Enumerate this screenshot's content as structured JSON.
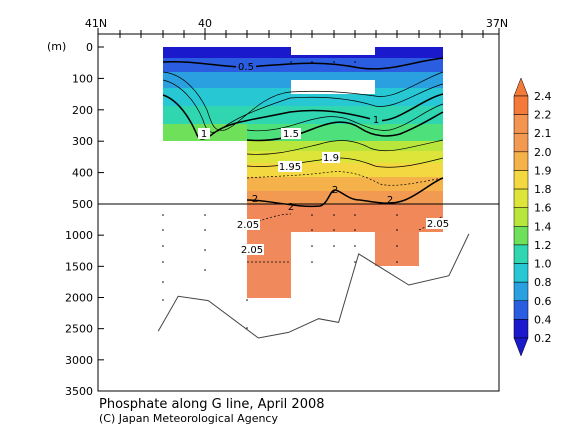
{
  "chart_data": {
    "type": "heatmap",
    "variable": "Phosphate",
    "caption": "Phosphate along G line, April 2008",
    "credit": "(C) Japan Meteorological Agency",
    "y_unit_label": "(m)",
    "x_ticks": [
      "41N",
      "40",
      "37N"
    ],
    "y_ticks_upper": [
      0,
      100,
      200,
      300,
      400,
      500
    ],
    "y_ticks_lower": [
      1000,
      1500,
      2000,
      2500,
      3000,
      3500
    ],
    "colorbar_levels": [
      2.4,
      2.2,
      2.1,
      2.0,
      1.9,
      1.8,
      1.6,
      1.4,
      1.2,
      1.0,
      0.8,
      0.6,
      0.4,
      0.2
    ],
    "contour_labels": [
      "0.5",
      "1",
      "1",
      "1.5",
      "1.95",
      "1.9",
      "2",
      "2",
      "2",
      "2",
      "2.05",
      "2.05",
      "2.05"
    ],
    "bottom_depth_profile": [
      {
        "lat": 40.4,
        "depth": 2540
      },
      {
        "lat": 40.2,
        "depth": 1980
      },
      {
        "lat": 39.9,
        "depth": 2050
      },
      {
        "lat": 39.4,
        "depth": 2650
      },
      {
        "lat": 39.1,
        "depth": 2560
      },
      {
        "lat": 38.8,
        "depth": 2340
      },
      {
        "lat": 38.6,
        "depth": 2400
      },
      {
        "lat": 38.4,
        "depth": 1300
      },
      {
        "lat": 37.9,
        "depth": 1800
      },
      {
        "lat": 37.5,
        "depth": 1650
      },
      {
        "lat": 37.3,
        "depth": 980
      }
    ]
  }
}
